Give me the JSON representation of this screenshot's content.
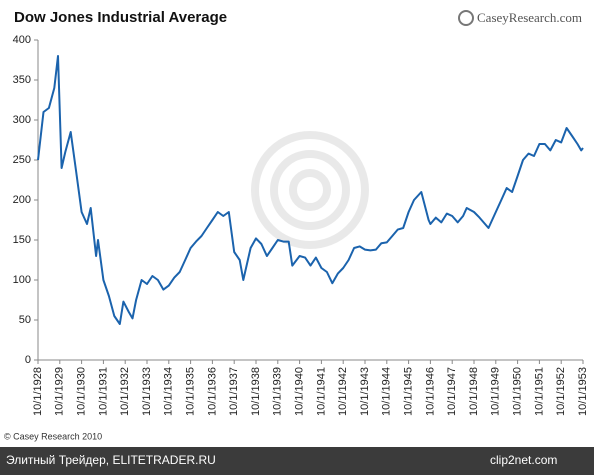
{
  "chart_data": {
    "type": "line",
    "title": "Dow Jones Industrial Average",
    "logo": "CaseyResearch.com",
    "source": "© Casey Research 2010",
    "caption": "Элитный Трейдер, ELITETRADER.RU",
    "badge": "clip2net.com",
    "grid": false,
    "ylim": [
      0,
      400
    ],
    "yticks": [
      0,
      50,
      100,
      150,
      200,
      250,
      300,
      350,
      400
    ],
    "xlim": [
      "1928-10",
      "1953-10"
    ],
    "xticks": [
      {
        "value": "1928-10",
        "label": "10/1/1928"
      },
      {
        "value": "1929-10",
        "label": "10/1/1929"
      },
      {
        "value": "1930-10",
        "label": "10/1/1930"
      },
      {
        "value": "1931-10",
        "label": "10/1/1931"
      },
      {
        "value": "1932-10",
        "label": "10/1/1932"
      },
      {
        "value": "1933-10",
        "label": "10/1/1933"
      },
      {
        "value": "1934-10",
        "label": "10/1/1934"
      },
      {
        "value": "1935-10",
        "label": "10/1/1935"
      },
      {
        "value": "1936-10",
        "label": "10/1/1936"
      },
      {
        "value": "1937-10",
        "label": "10/1/1937"
      },
      {
        "value": "1938-10",
        "label": "10/1/1938"
      },
      {
        "value": "1939-10",
        "label": "10/1/1939"
      },
      {
        "value": "1940-10",
        "label": "10/1/1940"
      },
      {
        "value": "1941-10",
        "label": "10/1/1941"
      },
      {
        "value": "1942-10",
        "label": "10/1/1942"
      },
      {
        "value": "1943-10",
        "label": "10/1/1943"
      },
      {
        "value": "1944-10",
        "label": "10/1/1944"
      },
      {
        "value": "1945-10",
        "label": "10/1/1945"
      },
      {
        "value": "1946-10",
        "label": "10/1/1946"
      },
      {
        "value": "1947-10",
        "label": "10/1/1947"
      },
      {
        "value": "1948-10",
        "label": "10/1/1948"
      },
      {
        "value": "1949-10",
        "label": "10/1/1949"
      },
      {
        "value": "1950-10",
        "label": "10/1/1950"
      },
      {
        "value": "1951-10",
        "label": "10/1/1951"
      },
      {
        "value": "1952-10",
        "label": "10/1/1952"
      },
      {
        "value": "1953-10",
        "label": "10/1/1953"
      }
    ],
    "color": "#1b63ad",
    "x": [
      "1928-10",
      "1929-01",
      "1929-04",
      "1929-07",
      "1929-09",
      "1929-11",
      "1930-01",
      "1930-04",
      "1930-07",
      "1930-10",
      "1931-01",
      "1931-03",
      "1931-06",
      "1931-07",
      "1931-10",
      "1932-01",
      "1932-04",
      "1932-07",
      "1932-09",
      "1932-12",
      "1933-02",
      "1933-04",
      "1933-07",
      "1933-10",
      "1934-01",
      "1934-04",
      "1934-07",
      "1934-10",
      "1935-01",
      "1935-04",
      "1935-07",
      "1935-10",
      "1936-01",
      "1936-04",
      "1936-07",
      "1936-10",
      "1937-01",
      "1937-04",
      "1937-07",
      "1937-10",
      "1938-01",
      "1938-03",
      "1938-07",
      "1938-10",
      "1939-01",
      "1939-04",
      "1939-07",
      "1939-10",
      "1940-01",
      "1940-04",
      "1940-06",
      "1940-10",
      "1941-01",
      "1941-04",
      "1941-07",
      "1941-10",
      "1942-01",
      "1942-04",
      "1942-07",
      "1942-10",
      "1943-01",
      "1943-04",
      "1943-07",
      "1943-10",
      "1944-01",
      "1944-04",
      "1944-07",
      "1944-10",
      "1945-01",
      "1945-04",
      "1945-07",
      "1945-10",
      "1946-01",
      "1946-05",
      "1946-09",
      "1946-10",
      "1947-01",
      "1947-04",
      "1947-07",
      "1947-10",
      "1948-01",
      "1948-04",
      "1948-06",
      "1948-10",
      "1949-01",
      "1949-06",
      "1949-10",
      "1950-01",
      "1950-04",
      "1950-07",
      "1950-10",
      "1951-01",
      "1951-04",
      "1951-07",
      "1951-10",
      "1952-01",
      "1952-04",
      "1952-07",
      "1952-10",
      "1953-01",
      "1953-04",
      "1953-07",
      "1953-09",
      "1953-10"
    ],
    "values": [
      250,
      310,
      315,
      340,
      380,
      240,
      260,
      285,
      235,
      185,
      170,
      190,
      130,
      150,
      100,
      80,
      55,
      45,
      73,
      60,
      52,
      75,
      100,
      95,
      105,
      100,
      88,
      93,
      103,
      110,
      125,
      140,
      148,
      155,
      165,
      175,
      185,
      180,
      185,
      135,
      125,
      100,
      140,
      152,
      145,
      130,
      140,
      150,
      148,
      148,
      118,
      130,
      128,
      118,
      128,
      115,
      110,
      96,
      108,
      115,
      125,
      140,
      142,
      138,
      137,
      138,
      146,
      147,
      155,
      163,
      165,
      185,
      200,
      210,
      175,
      170,
      178,
      172,
      183,
      180,
      172,
      180,
      190,
      185,
      178,
      165,
      185,
      200,
      215,
      210,
      230,
      250,
      258,
      255,
      270,
      270,
      262,
      275,
      272,
      290,
      280,
      270,
      262,
      265
    ]
  }
}
